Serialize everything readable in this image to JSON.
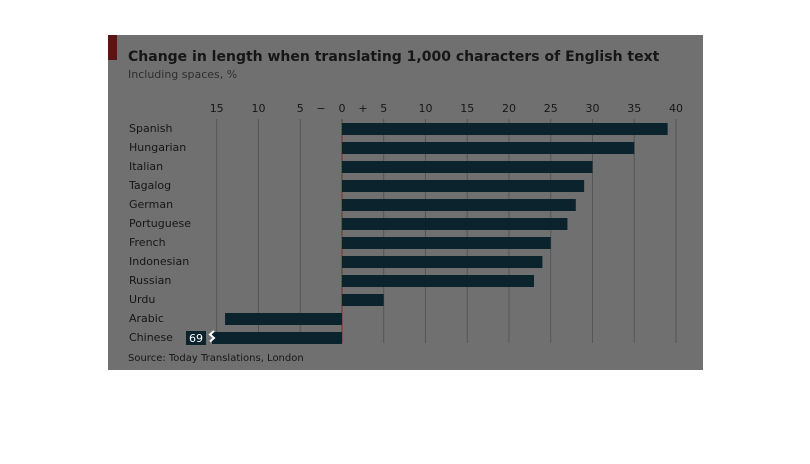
{
  "chart_data": {
    "type": "hbar",
    "title": "Change in length when translating 1,000 characters of English text",
    "subtitle": "Including spaces, %",
    "source": "Source: Today Translations, London",
    "axis_signs": {
      "negative": "−",
      "positive": "+"
    },
    "categories": [
      "Spanish",
      "Hungarian",
      "Italian",
      "Tagalog",
      "German",
      "Portuguese",
      "French",
      "Indonesian",
      "Russian",
      "Urdu",
      "Arabic",
      "Chinese"
    ],
    "values": [
      39,
      35,
      30,
      29,
      28,
      27,
      25,
      24,
      23,
      5,
      -14,
      -69
    ],
    "value_labels": [
      null,
      null,
      null,
      null,
      null,
      null,
      null,
      null,
      null,
      null,
      null,
      "69"
    ],
    "color": "#0b232c",
    "xlim": [
      -17,
      40
    ],
    "xticks": [
      {
        "value": -15,
        "label": "15"
      },
      {
        "value": -10,
        "label": "10"
      },
      {
        "value": -5,
        "label": "5"
      },
      0,
      5,
      10,
      15,
      20,
      25,
      30,
      35,
      40
    ],
    "grid": true
  }
}
